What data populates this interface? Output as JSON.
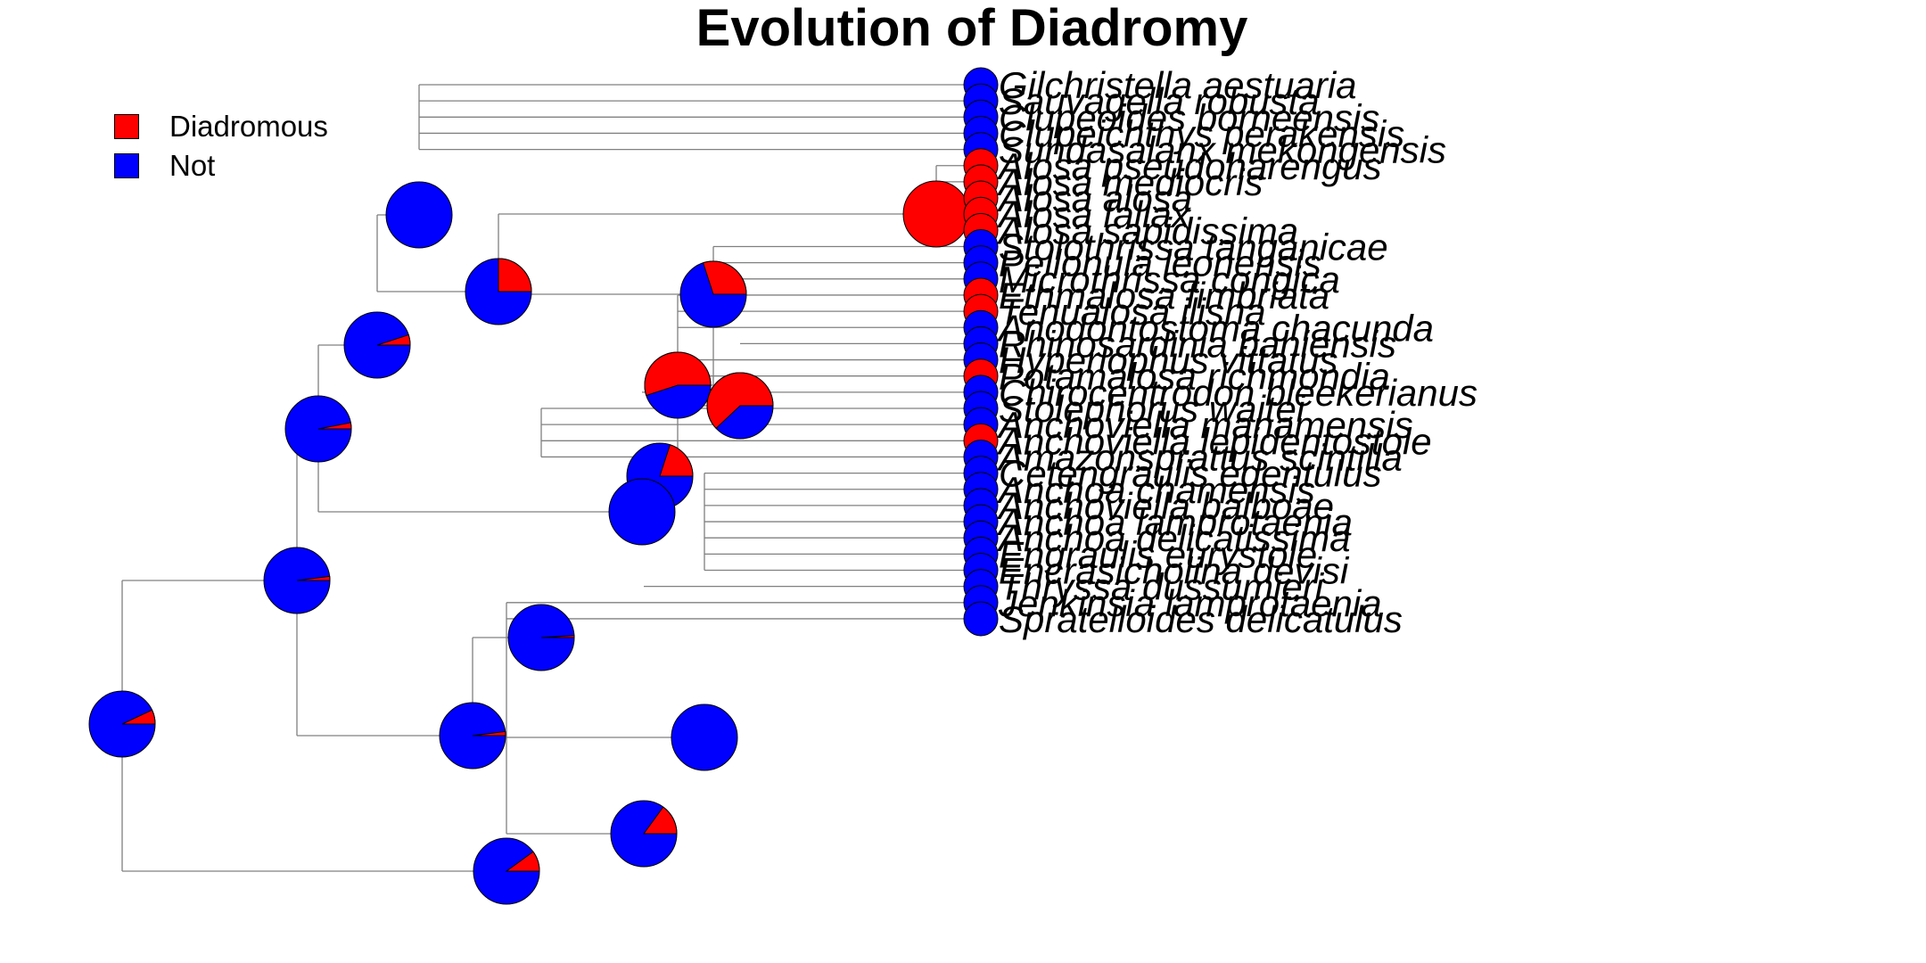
{
  "title": "Evolution of Diadromy",
  "legend": [
    {
      "label": "Diadromous",
      "color": "#ff0000"
    },
    {
      "label": "Not",
      "color": "#0000ff"
    }
  ],
  "colors": {
    "diadromous": "#ff0000",
    "not": "#0000ff",
    "branch": "#808080"
  },
  "tips": [
    {
      "name": "Gilchristella aestuaria",
      "state": "not"
    },
    {
      "name": "Sauvagella robusta",
      "state": "not"
    },
    {
      "name": "Clupeoides borneensis",
      "state": "not"
    },
    {
      "name": "Clupeichthys perakensis",
      "state": "not"
    },
    {
      "name": "Sundasalanx mekongensis",
      "state": "not"
    },
    {
      "name": "Alosa pseudoharengus",
      "state": "diadromous"
    },
    {
      "name": "Alosa mediocris",
      "state": "diadromous"
    },
    {
      "name": "Alosa alosa",
      "state": "diadromous"
    },
    {
      "name": "Alosa fallax",
      "state": "diadromous"
    },
    {
      "name": "Alosa sapidissima",
      "state": "diadromous"
    },
    {
      "name": "Stolothrissa tanganicae",
      "state": "not"
    },
    {
      "name": "Pellonula leonensis",
      "state": "not"
    },
    {
      "name": "Microthrissa congica",
      "state": "not"
    },
    {
      "name": "Ethmalosa fimbriata",
      "state": "diadromous"
    },
    {
      "name": "Tenualosa ilisha",
      "state": "diadromous"
    },
    {
      "name": "Anodontostoma chacunda",
      "state": "not"
    },
    {
      "name": "Rhinosardinia bahiensis",
      "state": "not"
    },
    {
      "name": "Hyperlophus vittatus",
      "state": "not"
    },
    {
      "name": "Potamalosa richmondia",
      "state": "diadromous"
    },
    {
      "name": "Chirocentrodon bleekerianus",
      "state": "not"
    },
    {
      "name": "Stolephorus waitei",
      "state": "not"
    },
    {
      "name": "Anchoviella manamensis",
      "state": "not"
    },
    {
      "name": "Anchoviella lepidentostole",
      "state": "diadromous"
    },
    {
      "name": "Amazonsprattus scintilla",
      "state": "not"
    },
    {
      "name": "Cetengraulis edentulus",
      "state": "not"
    },
    {
      "name": "Anchoa chamensis",
      "state": "not"
    },
    {
      "name": "Anchoviella balboae",
      "state": "not"
    },
    {
      "name": "Anchoa lamprotaenia",
      "state": "not"
    },
    {
      "name": "Anchoa delicatissima",
      "state": "not"
    },
    {
      "name": "Engraulis eurystole",
      "state": "not"
    },
    {
      "name": "Encrasicholina devisi",
      "state": "not"
    },
    {
      "name": "Thryssa dussumieri",
      "state": "not"
    },
    {
      "name": "Jenkinsia lamprotaenia",
      "state": "not"
    },
    {
      "name": "Spratelloides delicatulus",
      "state": "not"
    }
  ],
  "nodes": [
    {
      "id": "root",
      "p": 0.07
    },
    {
      "id": "clupeid",
      "p": 0.02
    },
    {
      "id": "pellon",
      "p": 0.03
    },
    {
      "id": "clupeoid_a",
      "p": 0.05
    },
    {
      "id": "gilch",
      "p": 0.0
    },
    {
      "id": "alosa_group",
      "p": 0.25
    },
    {
      "id": "alosa",
      "p": 1.0
    },
    {
      "id": "pellonula",
      "p": 0.3
    },
    {
      "id": "dorosom",
      "p": 0.55
    },
    {
      "id": "ethm",
      "p": 0.62
    },
    {
      "id": "hyper",
      "p": 0.2
    },
    {
      "id": "chiro",
      "p": 0.0
    },
    {
      "id": "engraulid",
      "p": 0.02
    },
    {
      "id": "anchov",
      "p": 0.01
    },
    {
      "id": "anchoa",
      "p": 0.0
    },
    {
      "id": "dussum",
      "p": 0.15
    },
    {
      "id": "spratel",
      "p": 0.1
    }
  ]
}
